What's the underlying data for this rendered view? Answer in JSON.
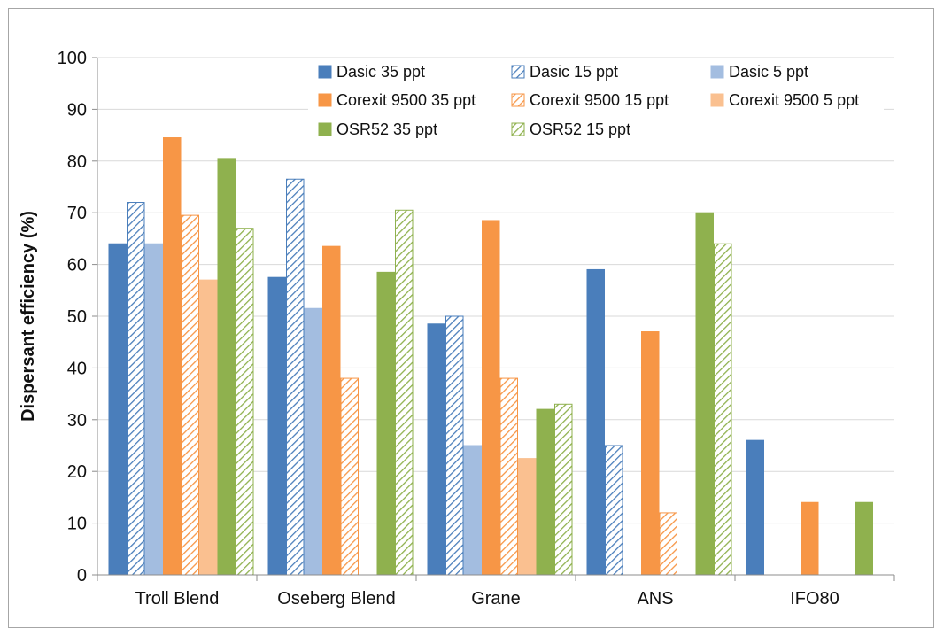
{
  "chart_data": {
    "type": "bar",
    "title": "",
    "xlabel": "",
    "ylabel": "Dispersant efficiency (%)",
    "ylim": [
      0,
      100
    ],
    "yticks": [
      0,
      10,
      20,
      30,
      40,
      50,
      60,
      70,
      80,
      90,
      100
    ],
    "grid": true,
    "legend_position": "top-right",
    "categories": [
      "Troll Blend",
      "Oseberg Blend",
      "Grane",
      "ANS",
      "IFO80"
    ],
    "series": [
      {
        "name": "Dasic 35 ppt",
        "color": "#4a7ebb",
        "fill": "solid",
        "values": [
          64,
          57.5,
          48.5,
          59,
          26
        ]
      },
      {
        "name": "Dasic 15 ppt",
        "color": "#4a7ebb",
        "fill": "hatch",
        "values": [
          72,
          76.5,
          50,
          25,
          null
        ]
      },
      {
        "name": "Dasic 5 ppt",
        "color": "#a3bde0",
        "fill": "light",
        "values": [
          64,
          51.5,
          25,
          null,
          null
        ]
      },
      {
        "name": "Corexit 9500 35 ppt",
        "color": "#f79646",
        "fill": "solid",
        "values": [
          84.5,
          63.5,
          68.5,
          47,
          14
        ]
      },
      {
        "name": "Corexit 9500 15 ppt",
        "color": "#f79646",
        "fill": "hatch",
        "values": [
          69.5,
          38,
          38,
          12,
          null
        ]
      },
      {
        "name": "Corexit 9500 5 ppt",
        "color": "#fac090",
        "fill": "light",
        "values": [
          57,
          null,
          22.5,
          null,
          null
        ]
      },
      {
        "name": "OSR52 35 ppt",
        "color": "#8fb14e",
        "fill": "solid",
        "values": [
          80.5,
          58.5,
          32,
          70,
          14
        ]
      },
      {
        "name": "OSR52 15 ppt",
        "color": "#8fb14e",
        "fill": "hatch",
        "values": [
          67,
          70.5,
          33,
          64,
          null
        ]
      }
    ]
  }
}
